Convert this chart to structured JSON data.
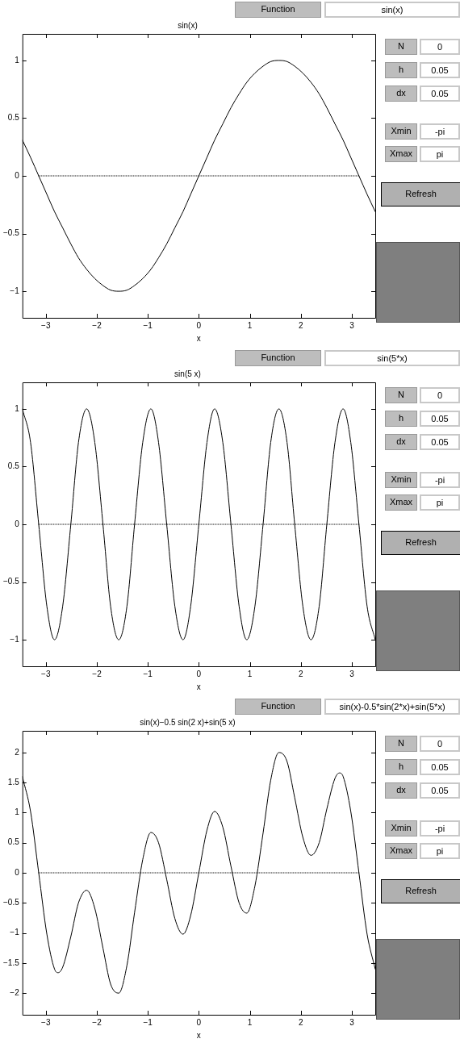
{
  "chart_data": [
    {
      "type": "line",
      "title": "sin(x)",
      "xlabel": "x",
      "xlim": [
        -3.46,
        3.46
      ],
      "xticks": [
        -3,
        -2,
        -1,
        0,
        1,
        2,
        3
      ],
      "ylim": [
        -1.23,
        1.23
      ],
      "yticks": [
        -1,
        -0.5,
        0,
        0.5,
        1
      ],
      "annotations": [
        "Function",
        "sin(x)",
        "N",
        "0",
        "h",
        "0.05",
        "dx",
        "0.05",
        "Xmin",
        "-pi",
        "Xmax",
        "pi",
        "Refresh"
      ],
      "series": [
        {
          "type": "line",
          "color": "#000000",
          "line_style": "solid",
          "x": [
            -3.46,
            -3.3,
            -3.14,
            -2.98,
            -2.83,
            -2.67,
            -2.51,
            -2.36,
            -2.2,
            -2.04,
            -1.88,
            -1.73,
            -1.57,
            -1.41,
            -1.26,
            -1.1,
            -0.94,
            -0.79,
            -0.63,
            -0.47,
            -0.31,
            -0.16,
            0,
            0.16,
            0.31,
            0.47,
            0.63,
            0.79,
            0.94,
            1.1,
            1.26,
            1.41,
            1.57,
            1.73,
            1.88,
            2.04,
            2.2,
            2.36,
            2.51,
            2.67,
            2.83,
            2.98,
            3.14,
            3.3,
            3.46
          ],
          "values": [
            0.31,
            0.16,
            0,
            -0.16,
            -0.31,
            -0.45,
            -0.59,
            -0.71,
            -0.81,
            -0.89,
            -0.95,
            -0.99,
            -1,
            -0.99,
            -0.95,
            -0.89,
            -0.81,
            -0.71,
            -0.59,
            -0.45,
            -0.31,
            -0.16,
            0,
            0.16,
            0.31,
            0.45,
            0.59,
            0.71,
            0.81,
            0.89,
            0.95,
            0.99,
            1,
            0.99,
            0.95,
            0.89,
            0.81,
            0.71,
            0.59,
            0.45,
            0.31,
            0.16,
            0,
            -0.16,
            -0.31
          ]
        },
        {
          "type": "line",
          "color": "#000000",
          "line_style": "dotted",
          "x": [
            -3.14,
            3.14
          ],
          "values": [
            0,
            0
          ]
        }
      ]
    },
    {
      "type": "line",
      "title": "sin(5 x)",
      "xlabel": "x",
      "xlim": [
        -3.46,
        3.46
      ],
      "xticks": [
        -3,
        -2,
        -1,
        0,
        1,
        2,
        3
      ],
      "ylim": [
        -1.23,
        1.23
      ],
      "yticks": [
        -1,
        -0.5,
        0,
        0.5,
        1
      ],
      "annotations": [
        "Function",
        "sin(5*x)",
        "N",
        "0",
        "h",
        "0.05",
        "dx",
        "0.05",
        "Xmin",
        "-pi",
        "Xmax",
        "pi",
        "Refresh"
      ],
      "series": [
        {
          "type": "line",
          "color": "#000000",
          "line_style": "solid",
          "x": [
            -3.46,
            -3.3,
            -3.14,
            -2.98,
            -2.83,
            -2.67,
            -2.51,
            -2.36,
            -2.2,
            -2.04,
            -1.88,
            -1.73,
            -1.57,
            -1.41,
            -1.26,
            -1.1,
            -0.94,
            -0.79,
            -0.63,
            -0.47,
            -0.31,
            -0.16,
            0,
            0.16,
            0.31,
            0.47,
            0.63,
            0.79,
            0.94,
            1.1,
            1.26,
            1.41,
            1.57,
            1.73,
            1.88,
            2.04,
            2.2,
            2.36,
            2.51,
            2.67,
            2.83,
            2.98,
            3.14,
            3.3,
            3.46
          ],
          "values": [
            1,
            0.71,
            0,
            -0.71,
            -1,
            -0.71,
            0,
            0.71,
            1,
            0.71,
            0,
            -0.71,
            -1,
            -0.71,
            0,
            0.71,
            1,
            0.71,
            0,
            -0.71,
            -1,
            -0.71,
            0,
            0.71,
            1,
            0.71,
            0,
            -0.71,
            -1,
            -0.71,
            0,
            0.71,
            1,
            0.71,
            0,
            -0.71,
            -1,
            -0.71,
            0,
            0.71,
            1,
            0.71,
            0,
            -0.71,
            -1
          ]
        },
        {
          "type": "line",
          "color": "#000000",
          "line_style": "dotted",
          "x": [
            -3.14,
            3.14
          ],
          "values": [
            0,
            0
          ]
        }
      ]
    },
    {
      "type": "line",
      "title": "sin(x)−0.5 sin(2 x)+sin(5 x)",
      "xlabel": "x",
      "xlim": [
        -3.46,
        3.46
      ],
      "xticks": [
        -3,
        -2,
        -1,
        0,
        1,
        2,
        3
      ],
      "ylim": [
        -2.36,
        2.36
      ],
      "yticks": [
        -2,
        -1.5,
        -1,
        -0.5,
        0,
        0.5,
        1,
        1.5,
        2
      ],
      "annotations": [
        "Function",
        "sin(x)-0.5*sin(2*x)+sin(5*x)",
        "N",
        "0",
        "h",
        "0.05",
        "dx",
        "0.05",
        "Xmin",
        "-pi",
        "Xmax",
        "pi",
        "Refresh"
      ],
      "series": [
        {
          "type": "line",
          "color": "#000000",
          "line_style": "solid",
          "x": [
            -3.46,
            -3.3,
            -3.14,
            -2.98,
            -2.83,
            -2.76,
            -2.67,
            -2.51,
            -2.36,
            -2.2,
            -2.04,
            -1.88,
            -1.73,
            -1.57,
            -1.41,
            -1.26,
            -1.1,
            -0.94,
            -0.79,
            -0.63,
            -0.47,
            -0.31,
            -0.16,
            0,
            0.16,
            0.31,
            0.47,
            0.63,
            0.79,
            0.94,
            1.1,
            1.26,
            1.41,
            1.57,
            1.73,
            1.88,
            2.04,
            2.2,
            2.36,
            2.51,
            2.67,
            2.76,
            2.83,
            2.98,
            3.14,
            3.3,
            3.46
          ],
          "values": [
            1.6,
            1.02,
            0,
            -1.02,
            -1.6,
            -1.66,
            -1.57,
            -1.06,
            -0.5,
            -0.29,
            -0.59,
            -1.25,
            -1.85,
            -2,
            -1.54,
            -0.66,
            0.22,
            0.67,
            0.5,
            -0.11,
            -0.76,
            -1.02,
            -0.71,
            0,
            0.71,
            1.02,
            0.76,
            0.11,
            -0.5,
            -0.67,
            -0.22,
            0.66,
            1.54,
            2,
            1.85,
            1.25,
            0.59,
            0.29,
            0.5,
            1.06,
            1.57,
            1.66,
            1.6,
            1.02,
            0,
            -1.02,
            -1.6
          ]
        },
        {
          "type": "line",
          "color": "#000000",
          "line_style": "dotted",
          "x": [
            -3.14,
            3.14
          ],
          "values": [
            0,
            0
          ]
        }
      ]
    }
  ]
}
